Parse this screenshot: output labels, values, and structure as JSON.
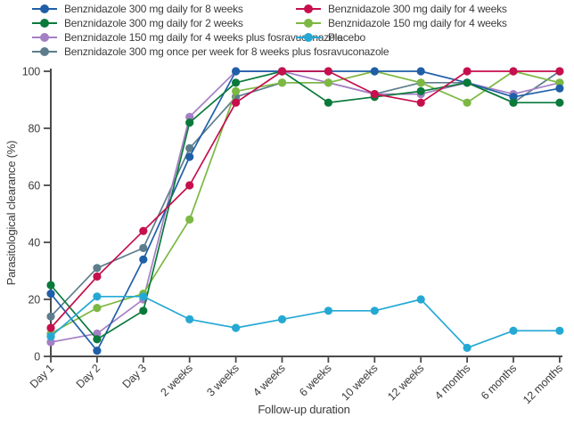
{
  "legend": {
    "columns": [
      {
        "items": [
          {
            "label": "Benznidazole 300 mg daily for 8 weeks",
            "series": "bz300d8w"
          },
          {
            "label": "Benznidazole 300 mg daily for 2 weeks",
            "series": "bz300d2w"
          },
          {
            "label": "Benznidazole 150 mg daily for 4 weeks plus fosravuconazole",
            "series": "bz150d4w_fos"
          },
          {
            "label": "Benznidazole 300 mg once per week for 8 weeks plus fosravuconazole",
            "series": "bz300w8w_fos"
          }
        ]
      },
      {
        "items": [
          {
            "label": "Benznidazole 300 mg daily for 4 weeks",
            "series": "bz300d4w"
          },
          {
            "label": "Benznidazole 150 mg daily for 4 weeks",
            "series": "bz150d4w"
          },
          {
            "label": "Placebo",
            "series": "placebo"
          }
        ]
      }
    ]
  },
  "chart_data": {
    "type": "line",
    "title": "",
    "xlabel": "Follow-up duration",
    "ylabel": "Parasitological clearance (%)",
    "ylim": [
      0,
      100
    ],
    "yticks": [
      0,
      20,
      40,
      60,
      80,
      100
    ],
    "grid": false,
    "legend_position": "top",
    "categories": [
      "Day 1",
      "Day 2",
      "Day 3",
      "2 weeks",
      "3 weeks",
      "4 weeks",
      "6 weeks",
      "10 weeks",
      "12 weeks",
      "4 months",
      "6 months",
      "12 months"
    ],
    "series": [
      {
        "id": "bz300d8w",
        "name": "Benznidazole 300 mg daily for 8 weeks",
        "color": "#1f5fa8",
        "values": [
          22,
          2,
          34,
          70,
          100,
          100,
          100,
          100,
          100,
          96,
          91,
          94
        ]
      },
      {
        "id": "bz300d4w",
        "name": "Benznidazole 300 mg daily for 4 weeks",
        "color": "#c60f4c",
        "values": [
          10,
          28,
          44,
          60,
          89,
          100,
          100,
          92,
          89,
          100,
          100,
          100
        ]
      },
      {
        "id": "bz300d2w",
        "name": "Benznidazole 300 mg daily for 2 weeks",
        "color": "#0a7a3c",
        "values": [
          25,
          6,
          16,
          82,
          96,
          100,
          89,
          91,
          93,
          96,
          89,
          89
        ]
      },
      {
        "id": "bz150d4w",
        "name": "Benznidazole 150 mg daily for 4 weeks",
        "color": "#7cb842",
        "values": [
          8,
          17,
          22,
          48,
          93,
          96,
          96,
          100,
          96,
          89,
          100,
          96
        ]
      },
      {
        "id": "bz150d4w_fos",
        "name": "Benznidazole 150 mg daily for 4 weeks plus fosravuconazole",
        "color": "#a57fc4",
        "values": [
          5,
          8,
          20,
          84,
          100,
          100,
          96,
          92,
          92,
          96,
          92,
          96
        ]
      },
      {
        "id": "placebo",
        "name": "Placebo",
        "color": "#25a9d4",
        "values": [
          7,
          21,
          21,
          13,
          10,
          13,
          16,
          16,
          20,
          3,
          9,
          9
        ]
      },
      {
        "id": "bz300w8w_fos",
        "name": "Benznidazole 300 mg once per week for 8 weeks plus fosravuconazole",
        "color": "#5d7d8c",
        "values": [
          14,
          31,
          38,
          73,
          91,
          96,
          96,
          92,
          96,
          96,
          89,
          100
        ]
      }
    ],
    "draw_order": [
      "bz300w8w_fos",
      "bz150d4w_fos",
      "bz150d4w",
      "bz300d8w",
      "bz300d2w",
      "bz300d4w",
      "placebo"
    ]
  },
  "style": {
    "axis_color": "#4a4a4a",
    "text_color": "#3c3c3c",
    "background": "#ffffff"
  }
}
